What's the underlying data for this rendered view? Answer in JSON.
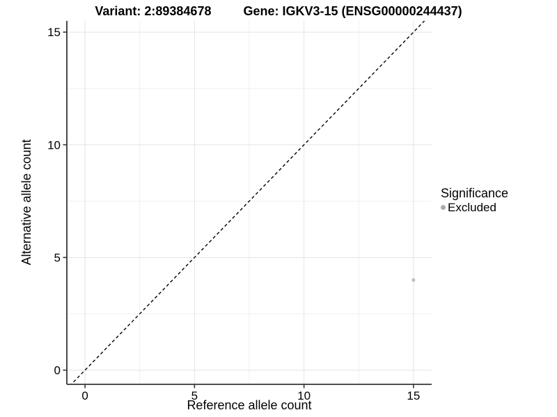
{
  "chart_data": {
    "type": "scatter",
    "title_left": "Variant: 2:89384678",
    "title_right": "Gene: IGKV3-15 (ENSG00000244437)",
    "xlabel": "Reference allele count",
    "ylabel": "Alternative allele count",
    "xlim": [
      -0.83,
      15.83
    ],
    "ylim": [
      -0.63,
      15.5
    ],
    "xticks": [
      0,
      5,
      10,
      15
    ],
    "yticks": [
      0,
      5,
      10,
      15
    ],
    "minor_xticks": [
      2.5,
      7.5,
      12.5
    ],
    "minor_yticks": [
      2.5,
      7.5,
      12.5
    ],
    "grid": true,
    "legend_position": "right",
    "abline": {
      "slope": 1,
      "intercept": 0,
      "style": "dashed"
    },
    "series": [
      {
        "name": "Excluded",
        "color": "#c2c2c2",
        "points": [
          {
            "x": 15,
            "y": 4
          }
        ]
      }
    ],
    "legend": {
      "title": "Significance",
      "items": [
        {
          "label": "Excluded",
          "color": "#ababab"
        }
      ]
    },
    "colors": {
      "grid_major": "#e4e4e4",
      "grid_minor": "#efefef",
      "axis_line": "#343434",
      "tick_text": "#000000",
      "abline": "#000000"
    }
  }
}
